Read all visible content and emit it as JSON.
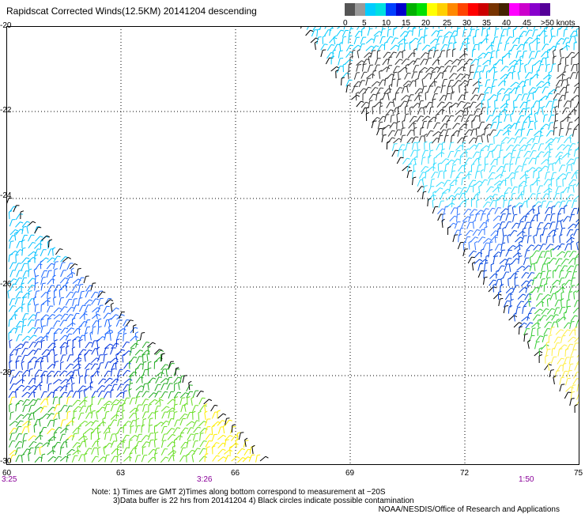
{
  "title": "Rapidscat Corrected Winds(12.5KM) 20141204 descending",
  "colorbar": {
    "labels": [
      "0",
      "5",
      "10",
      "15",
      "20",
      "25",
      "30",
      "35",
      "40",
      "45",
      ">50 knots"
    ],
    "colors": [
      "#555555",
      "#999999",
      "#00ccff",
      "#00e0e0",
      "#0040ff",
      "#0000cc",
      "#00b000",
      "#00e000",
      "#ffff00",
      "#ffd000",
      "#ff8800",
      "#ff4400",
      "#ff0000",
      "#cc0000",
      "#773300",
      "#442200",
      "#ff00ff",
      "#cc00cc",
      "#8800cc",
      "#550099"
    ]
  },
  "axes": {
    "lat_labels": [
      "-20",
      "-22",
      "-24",
      "-26",
      "-28",
      "-30"
    ],
    "lon_labels": [
      "60",
      "63",
      "66",
      "69",
      "72",
      "75"
    ]
  },
  "times": [
    "3:25",
    "3:26",
    "1:50"
  ],
  "notes": {
    "line1": "Note: 1) Times are GMT 2)Times along bottom correspond to measurement at −20S",
    "line2": "3)Data buffer is 22 hrs from 20141204 4) Black circles indicate possible contamination"
  },
  "credit": "NOAA/NESDIS/Office of Research and Applications",
  "swaths": {
    "left": {
      "color_zones": [
        "#00bfff",
        "#1a66ff",
        "#0033dd",
        "#22aa22",
        "#66dd22",
        "#ffee00"
      ]
    },
    "right": {
      "color_zones": [
        "#00ccff",
        "#333333",
        "#33ddff",
        "#3377ff",
        "#0044dd",
        "#33cc33",
        "#ffee44"
      ]
    }
  }
}
